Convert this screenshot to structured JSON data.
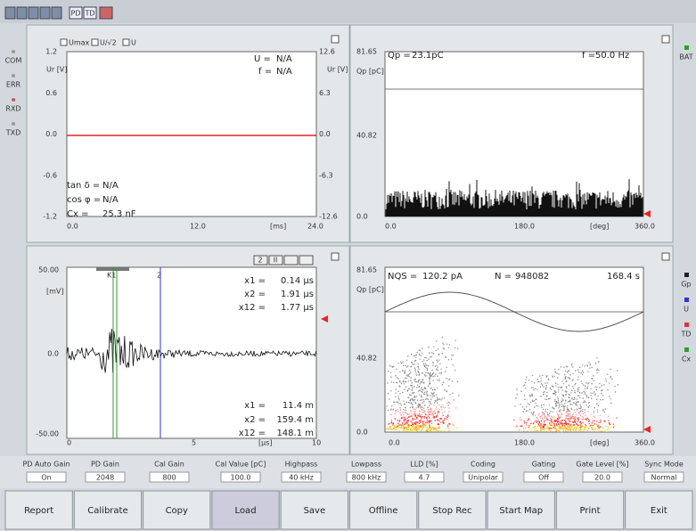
{
  "toolbar": {
    "buttons": [
      "PD",
      "TD"
    ]
  },
  "status_left": [
    "COM",
    "ERR",
    "RXD",
    "TXD"
  ],
  "status_right": [
    "BAT",
    "Gp",
    "U",
    "TD",
    "Cx"
  ],
  "voltage_panel": {
    "checkboxes": [
      "Umax",
      "U/√2",
      "U"
    ],
    "y_label": "Ur [V]",
    "y_ticks": [
      "1.2",
      "0.6",
      "0.0",
      "-0.6",
      "-1.2"
    ],
    "y2_label": "Ur [V]",
    "y2_ticks": [
      "12.6",
      "6.3",
      "0.0",
      "-6.3",
      "-12.6"
    ],
    "x_ticks": [
      "0.0",
      "12.0",
      "[ms]",
      "24.0"
    ],
    "readouts": [
      {
        "label": "U =",
        "value": "N/A"
      },
      {
        "label": "f =",
        "value": "N/A"
      },
      {
        "label": "tan δ =",
        "value": "N/A"
      },
      {
        "label": "cos φ =",
        "value": "N/A"
      },
      {
        "label": "Cx =",
        "value": "25.3 nF"
      }
    ]
  },
  "charge_panel": {
    "y_label": "Qp [pC]",
    "y_ticks": [
      "81.65",
      "40.82",
      "0.0"
    ],
    "x_ticks": [
      "0.0",
      "180.0",
      "[deg]",
      "360.0"
    ],
    "readouts": [
      {
        "label": "Qp =",
        "value": "23.1pC"
      },
      {
        "label": "f =",
        "value": "50.0 Hz"
      }
    ]
  },
  "pulse_panel": {
    "y_label": "[mV]",
    "y_ticks": [
      "50.00",
      "0.0",
      "-50.00"
    ],
    "x_ticks": [
      "0",
      "5",
      "[µs]",
      "10"
    ],
    "cursors": [
      "K1",
      "2"
    ],
    "buttons": [
      "2",
      "II"
    ],
    "readouts": [
      {
        "label": "x1 =",
        "value": "0.14 µs"
      },
      {
        "label": "x2 =",
        "value": "1.91 µs"
      },
      {
        "label": "x12 =",
        "value": "1.77 µs"
      },
      {
        "label": "x1 =",
        "value": "11.4 m"
      },
      {
        "label": "x2 =",
        "value": "159.4 m"
      },
      {
        "label": "x12 =",
        "value": "148.1 m"
      }
    ]
  },
  "pattern_panel": {
    "y_label": "Qp [pC]",
    "y_ticks": [
      "81.65",
      "40.82",
      "0.0"
    ],
    "x_ticks": [
      "0.0",
      "180.0",
      "[deg]",
      "360.0"
    ],
    "readouts": [
      {
        "label": "NQS =",
        "value": "120.2 pA"
      },
      {
        "label": "N =",
        "value": "948082"
      },
      {
        "label": "",
        "value": "168.4 s"
      }
    ]
  },
  "settings": [
    {
      "label": "PD Auto Gain",
      "value": "On"
    },
    {
      "label": "PD Gain",
      "value": "2048"
    },
    {
      "label": "Cal Gain",
      "value": "800"
    },
    {
      "label": "Cal Value [pC]",
      "value": "100.0"
    },
    {
      "label": "Highpass",
      "value": "40 kHz"
    },
    {
      "label": "Lowpass",
      "value": "800 kHz"
    },
    {
      "label": "LLD [%]",
      "value": "4.7"
    },
    {
      "label": "Coding",
      "value": "Unipolar"
    },
    {
      "label": "Gating",
      "value": "Off"
    },
    {
      "label": "Gate Level [%]",
      "value": "20.0"
    },
    {
      "label": "Sync Mode",
      "value": "Normal"
    }
  ],
  "buttons": [
    "Report",
    "Calibrate",
    "Copy",
    "Load",
    "Save",
    "Offline",
    "Stop Rec",
    "Start Map",
    "Print",
    "Exit"
  ]
}
